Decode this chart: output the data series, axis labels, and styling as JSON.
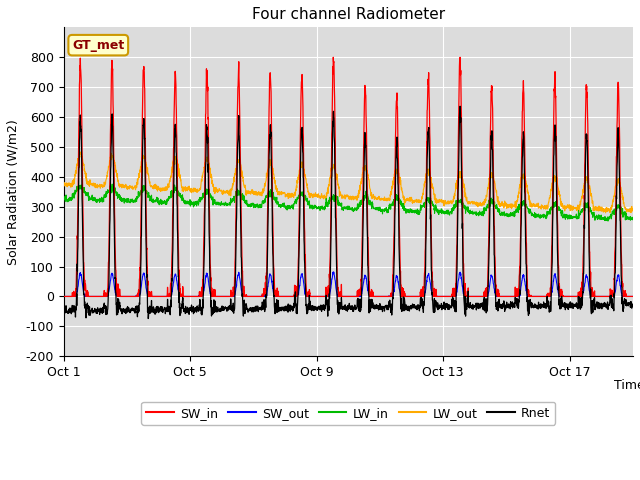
{
  "title": "Four channel Radiometer",
  "xlabel": "Time",
  "ylabel": "Solar Radiation (W/m2)",
  "ylim": [
    -200,
    900
  ],
  "yticks": [
    -200,
    -100,
    0,
    100,
    200,
    300,
    400,
    500,
    600,
    700,
    800
  ],
  "xtick_labels": [
    "Oct 1",
    "Oct 5",
    "Oct 9",
    "Oct 13",
    "Oct 17"
  ],
  "xtick_positions": [
    0,
    4,
    8,
    12,
    16
  ],
  "num_days": 18,
  "colors": {
    "SW_in": "#ff0000",
    "SW_out": "#0000ff",
    "LW_in": "#00bb00",
    "LW_out": "#ffaa00",
    "Rnet": "#000000"
  },
  "plot_bg": "#dcdcdc",
  "fig_bg": "#ffffff",
  "legend_label": "GT_met",
  "legend_bg": "#ffffcc",
  "legend_border": "#cc9900",
  "title_fontsize": 11,
  "axis_fontsize": 9,
  "tick_fontsize": 9
}
